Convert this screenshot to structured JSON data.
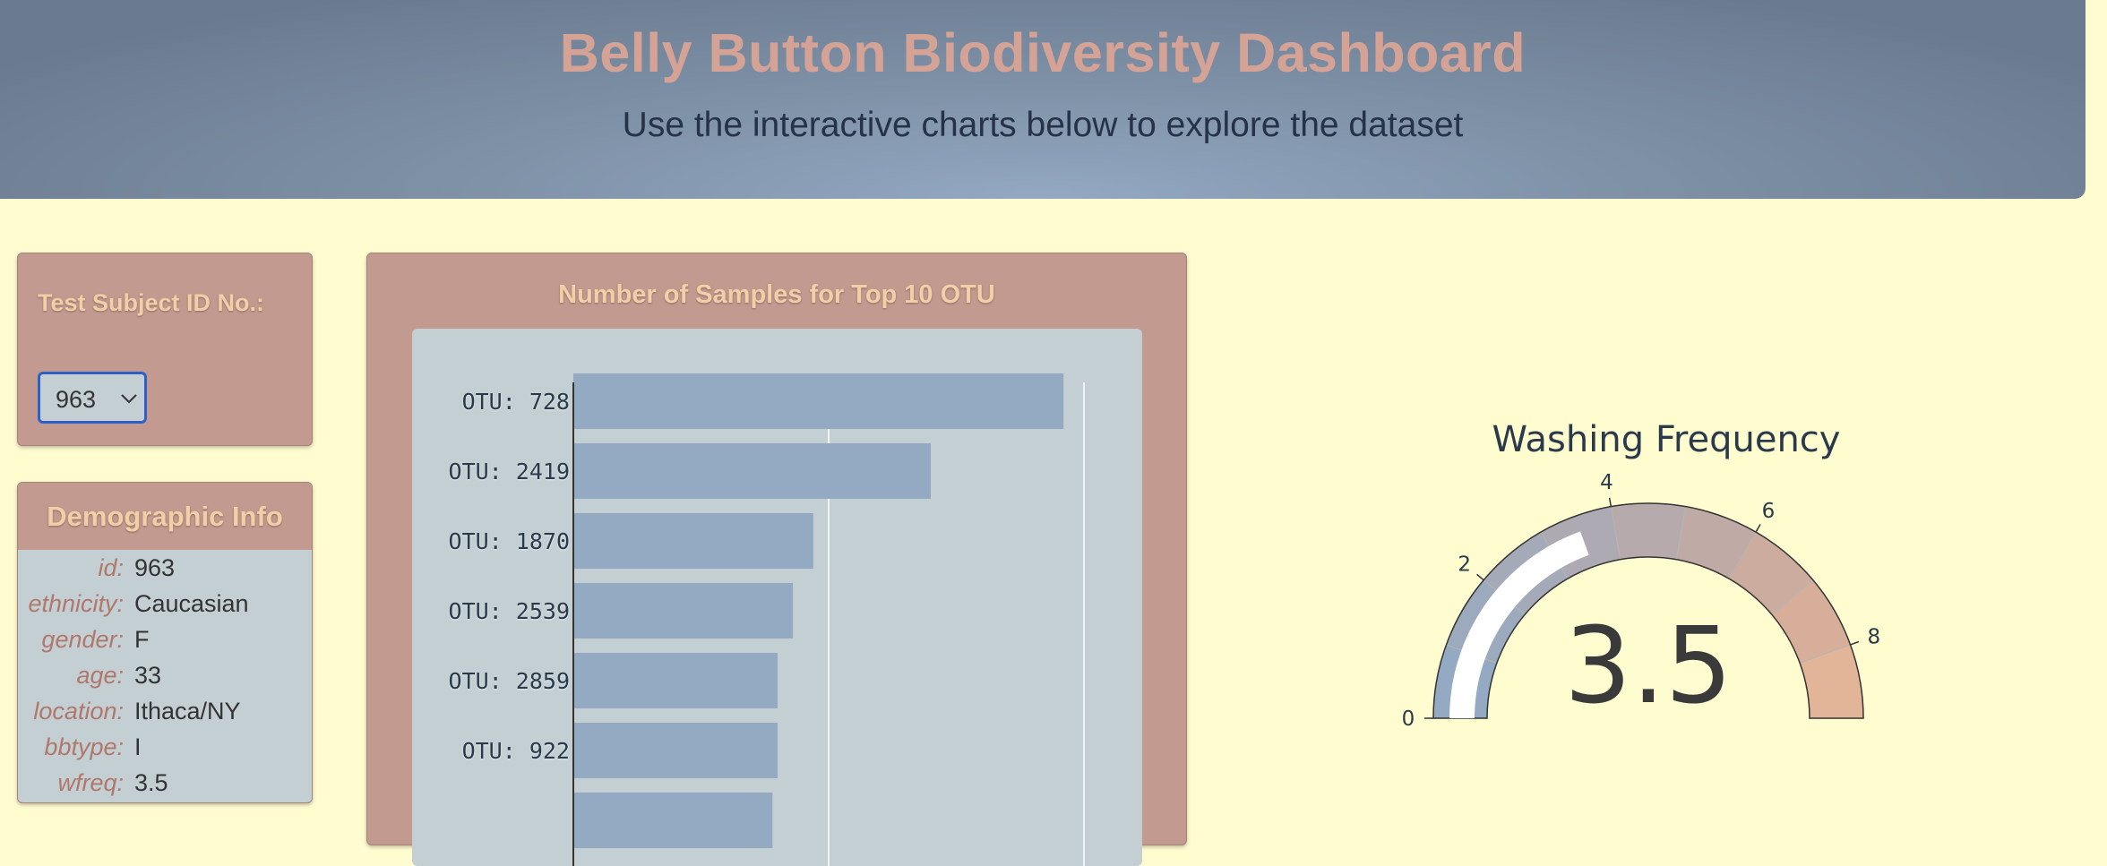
{
  "header": {
    "title": "Belly Button Biodiversity Dashboard",
    "subtitle": "Use the interactive charts below to explore the dataset"
  },
  "selector": {
    "label": "Test Subject ID No.:",
    "selected": "963"
  },
  "demographics": {
    "title": "Demographic Info",
    "rows": [
      {
        "key": "id:",
        "value": "963"
      },
      {
        "key": "ethnicity:",
        "value": "Caucasian"
      },
      {
        "key": "gender:",
        "value": "F"
      },
      {
        "key": "age:",
        "value": "33"
      },
      {
        "key": "location:",
        "value": "Ithaca/NY"
      },
      {
        "key": "bbtype:",
        "value": "I"
      },
      {
        "key": "wfreq:",
        "value": "3.5"
      }
    ]
  },
  "colors": {
    "bar": "#93aac2",
    "plot_bg": "#c3cfd3",
    "panel": "#c39a8f"
  },
  "chart_data": [
    {
      "type": "bar",
      "orientation": "horizontal",
      "title": "Number of Samples for Top 10 OTU",
      "categories": [
        "OTU: 728",
        "OTU: 2419",
        "OTU: 1870",
        "OTU: 2539",
        "OTU: 2859",
        "OTU: 922",
        ""
      ],
      "values": [
        96,
        70,
        47,
        43,
        40,
        40,
        39
      ],
      "xlim": [
        0,
        100
      ],
      "gridlines": [
        50,
        100
      ]
    },
    {
      "type": "gauge",
      "title": "Washing Frequency",
      "value": 3.5,
      "value_label": "3.5",
      "range": [
        0,
        9
      ],
      "ticks": [
        "0",
        "2",
        "4",
        "6",
        "8"
      ],
      "step_colors": [
        "#93aac2",
        "#9caabd",
        "#a4aab8",
        "#adaab3",
        "#b7aaad",
        "#c0aaa6",
        "#cbac9f",
        "#d6ae99",
        "#e3b598"
      ]
    }
  ]
}
